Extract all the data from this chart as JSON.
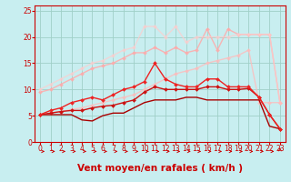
{
  "xlabel": "Vent moyen/en rafales ( km/h )",
  "xlim": [
    -0.5,
    23.5
  ],
  "ylim": [
    0,
    26
  ],
  "xticks": [
    0,
    1,
    2,
    3,
    4,
    5,
    6,
    7,
    8,
    9,
    10,
    11,
    12,
    13,
    14,
    15,
    16,
    17,
    18,
    19,
    20,
    21,
    22,
    23
  ],
  "yticks": [
    0,
    5,
    10,
    15,
    20,
    25
  ],
  "background_color": "#c8eef0",
  "grid_color": "#a0d0c8",
  "series": [
    {
      "x": [
        0,
        1,
        2,
        3,
        4,
        5,
        6,
        7,
        8,
        9,
        10,
        11,
        12,
        13,
        14,
        15,
        16,
        17,
        18,
        19,
        20,
        21,
        22,
        23
      ],
      "y": [
        5.2,
        5.2,
        5.2,
        5.2,
        4.2,
        4.0,
        5.0,
        5.5,
        5.5,
        6.5,
        7.5,
        8.0,
        8.0,
        8.0,
        8.5,
        8.5,
        8.0,
        8.0,
        8.0,
        8.0,
        8.0,
        8.0,
        3.0,
        2.5
      ],
      "color": "#aa0000",
      "marker": null,
      "lw": 1.0,
      "alpha": 1.0,
      "zorder": 3
    },
    {
      "x": [
        0,
        1,
        2,
        3,
        4,
        5,
        6,
        7,
        8,
        9,
        10,
        11,
        12,
        13,
        14,
        15,
        16,
        17,
        18,
        19,
        20,
        21,
        22,
        23
      ],
      "y": [
        5.2,
        5.5,
        5.8,
        6.0,
        6.0,
        6.5,
        6.8,
        7.0,
        7.5,
        8.0,
        9.5,
        10.5,
        10.0,
        10.0,
        10.0,
        10.0,
        10.5,
        10.5,
        10.0,
        10.0,
        10.2,
        8.5,
        5.2,
        2.5
      ],
      "color": "#cc1111",
      "marker": "D",
      "markersize": 2.0,
      "lw": 1.0,
      "alpha": 1.0,
      "zorder": 3
    },
    {
      "x": [
        0,
        1,
        2,
        3,
        4,
        5,
        6,
        7,
        8,
        9,
        10,
        11,
        12,
        13,
        14,
        15,
        16,
        17,
        18,
        19,
        20,
        21,
        22,
        23
      ],
      "y": [
        5.2,
        6.0,
        6.5,
        7.5,
        8.0,
        8.5,
        8.0,
        9.0,
        10.0,
        10.5,
        11.5,
        15.0,
        12.0,
        11.0,
        10.5,
        10.5,
        12.0,
        12.0,
        10.5,
        10.5,
        10.5,
        8.5,
        5.2,
        2.5
      ],
      "color": "#ee2222",
      "marker": "D",
      "markersize": 2.0,
      "lw": 1.0,
      "alpha": 1.0,
      "zorder": 3
    },
    {
      "x": [
        0,
        1,
        2,
        3,
        4,
        5,
        6,
        7,
        8,
        9,
        10,
        11,
        12,
        13,
        14,
        15,
        16,
        17,
        18,
        19,
        20,
        21,
        22,
        23
      ],
      "y": [
        9.5,
        10.0,
        11.0,
        12.0,
        13.0,
        14.0,
        14.5,
        15.0,
        16.0,
        17.0,
        17.0,
        18.0,
        17.0,
        18.0,
        17.0,
        17.5,
        21.5,
        17.5,
        21.5,
        20.5,
        20.5,
        20.5,
        20.5,
        7.5
      ],
      "color": "#ffaaaa",
      "marker": "D",
      "markersize": 2.0,
      "lw": 1.0,
      "alpha": 0.85,
      "zorder": 2
    },
    {
      "x": [
        0,
        1,
        2,
        3,
        4,
        5,
        6,
        7,
        8,
        9,
        10,
        11,
        12,
        13,
        14,
        15,
        16,
        17,
        18,
        19,
        20,
        21,
        22,
        23
      ],
      "y": [
        10.0,
        11.0,
        12.0,
        13.0,
        14.0,
        15.0,
        15.5,
        16.5,
        17.5,
        18.0,
        22.0,
        22.0,
        20.0,
        22.0,
        19.0,
        20.0,
        20.0,
        20.0,
        20.0,
        20.5,
        20.5,
        20.5,
        20.5,
        7.5
      ],
      "color": "#ffcccc",
      "marker": "D",
      "markersize": 2.0,
      "lw": 1.0,
      "alpha": 0.7,
      "zorder": 2
    },
    {
      "x": [
        0,
        1,
        2,
        3,
        4,
        5,
        6,
        7,
        8,
        9,
        10,
        11,
        12,
        13,
        14,
        15,
        16,
        17,
        18,
        19,
        20,
        21,
        22,
        23
      ],
      "y": [
        5.2,
        5.5,
        5.8,
        6.2,
        6.5,
        7.0,
        7.5,
        8.0,
        8.5,
        9.0,
        10.0,
        11.0,
        12.0,
        13.0,
        13.5,
        14.0,
        15.0,
        15.5,
        16.0,
        16.5,
        17.5,
        7.5,
        7.5,
        7.5
      ],
      "color": "#ffbbbb",
      "marker": "D",
      "markersize": 2.0,
      "lw": 1.0,
      "alpha": 0.78,
      "zorder": 2
    }
  ],
  "arrow_color": "#cc0000",
  "tick_fontsize": 5.5,
  "xlabel_fontsize": 7.5
}
